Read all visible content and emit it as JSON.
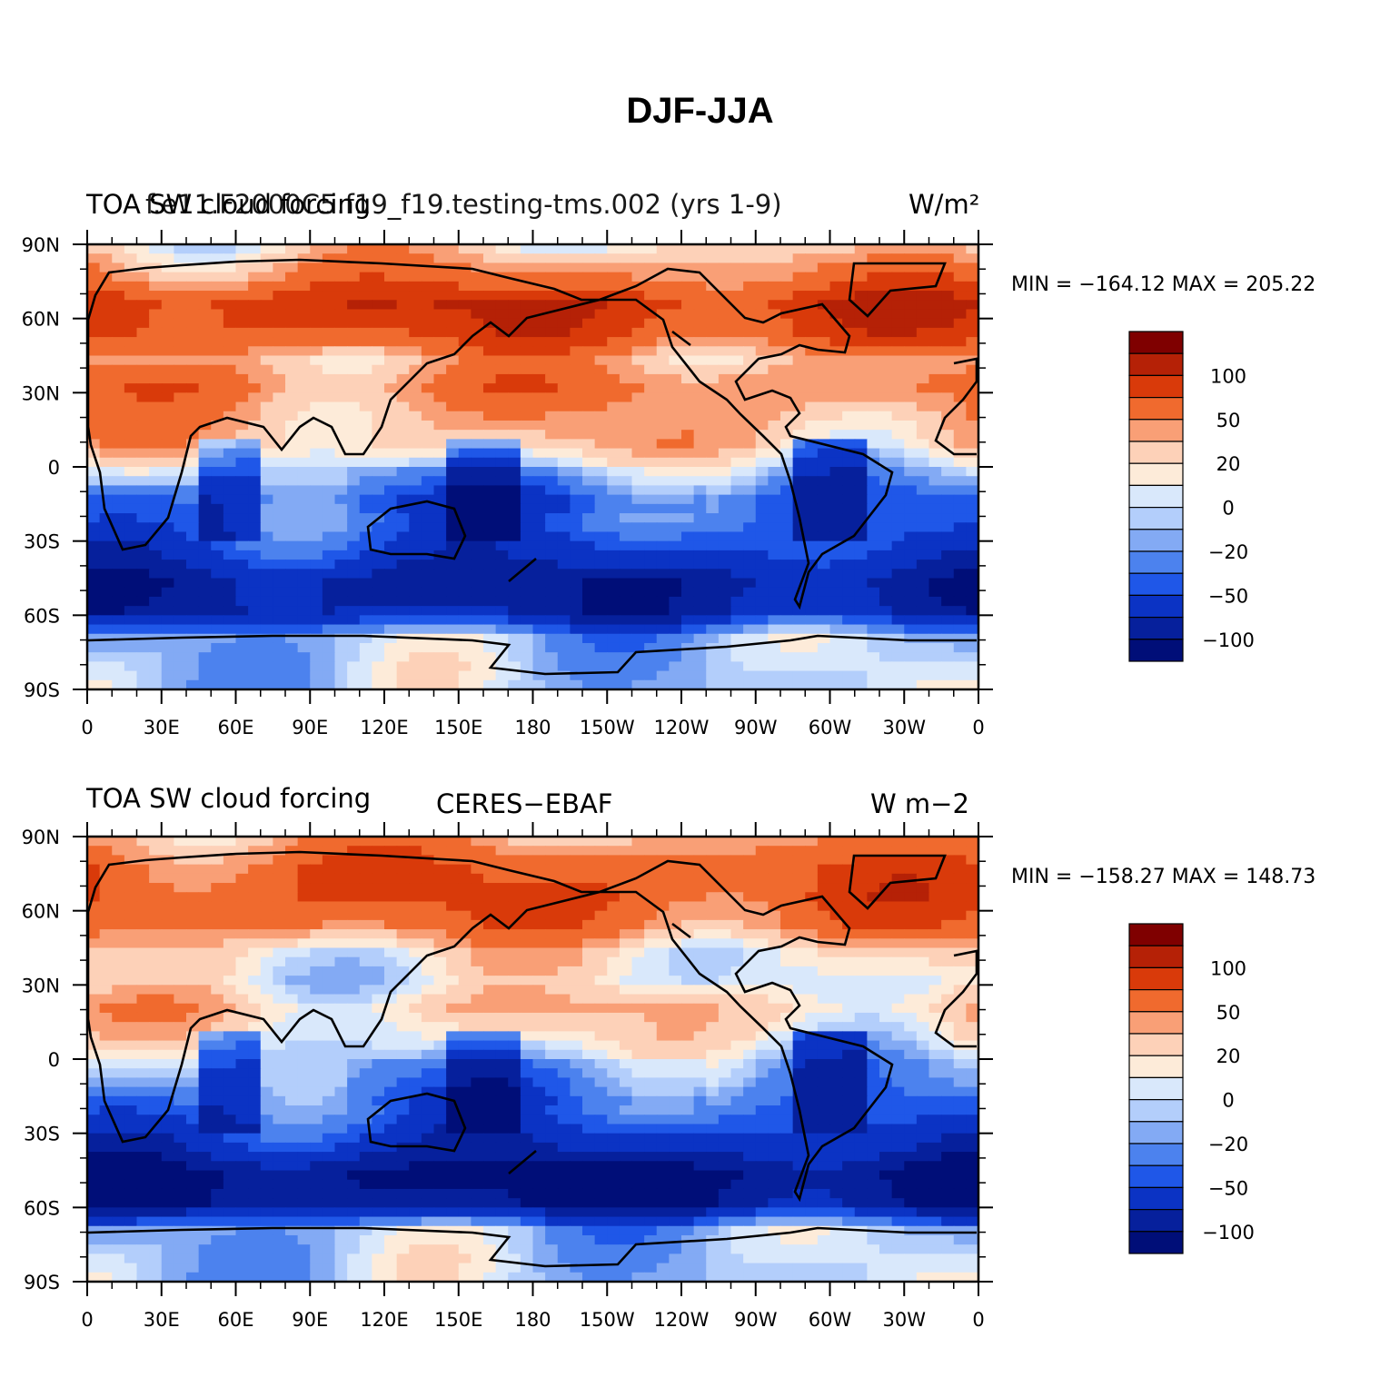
{
  "title": "DJF-JJA",
  "colors": {
    "levels": [
      "#7f0000",
      "#b52106",
      "#d93a0a",
      "#f06a2e",
      "#f99f76",
      "#fdd1b8",
      "#fdebd9",
      "#d9e8fb",
      "#b3cefb",
      "#83aaf4",
      "#4c82ee",
      "#1f57e8",
      "#0b33c4",
      "#06209c",
      "#000e78"
    ],
    "coast": "#000000"
  },
  "chart_data": [
    {
      "type": "heatmap",
      "name": "model",
      "left_title_a": "TOA SW cloud forcing",
      "left_title_b": "f.e11.F2000C5.f19_f19.testing-tms.002 (yrs 1-9)",
      "center_title": "",
      "units": "W/m²",
      "min_max": "MIN = −164.12 MAX = 205.22",
      "min": -164.12,
      "max": 205.22,
      "colorbar_ticks": [
        "100",
        "50",
        "20",
        "0",
        "−20",
        "−50",
        "−100"
      ],
      "xticks": [
        "0",
        "30E",
        "60E",
        "90E",
        "120E",
        "150E",
        "180",
        "150W",
        "120W",
        "90W",
        "60W",
        "30W",
        "0"
      ],
      "yticks": [
        "90N",
        "60N",
        "30N",
        "0",
        "30S",
        "60S",
        "90S"
      ],
      "lat_profile": [
        25,
        55,
        95,
        80,
        40,
        55,
        40,
        30,
        -5,
        -35,
        -40,
        -60,
        -90,
        -80,
        -10,
        -5
      ]
    },
    {
      "type": "heatmap",
      "name": "obs",
      "left_title_a": "TOA SW cloud forcing",
      "left_title_b": "",
      "center_title": "CERES−EBAF",
      "units": "W m−2",
      "min_max": "MIN = −158.27 MAX = 148.73",
      "min": -158.27,
      "max": 148.73,
      "colorbar_ticks": [
        "100",
        "50",
        "20",
        "0",
        "−20",
        "−50",
        "−100"
      ],
      "xticks": [
        "0",
        "30E",
        "60E",
        "90E",
        "120E",
        "150E",
        "180",
        "150W",
        "120W",
        "90W",
        "60W",
        "30W",
        "0"
      ],
      "yticks": [
        "90N",
        "60N",
        "30N",
        "0",
        "30S",
        "60S",
        "90S"
      ],
      "lat_profile": [
        45,
        70,
        75,
        60,
        20,
        10,
        30,
        15,
        -10,
        -25,
        -45,
        -70,
        -110,
        -100,
        -10,
        -5
      ]
    }
  ]
}
